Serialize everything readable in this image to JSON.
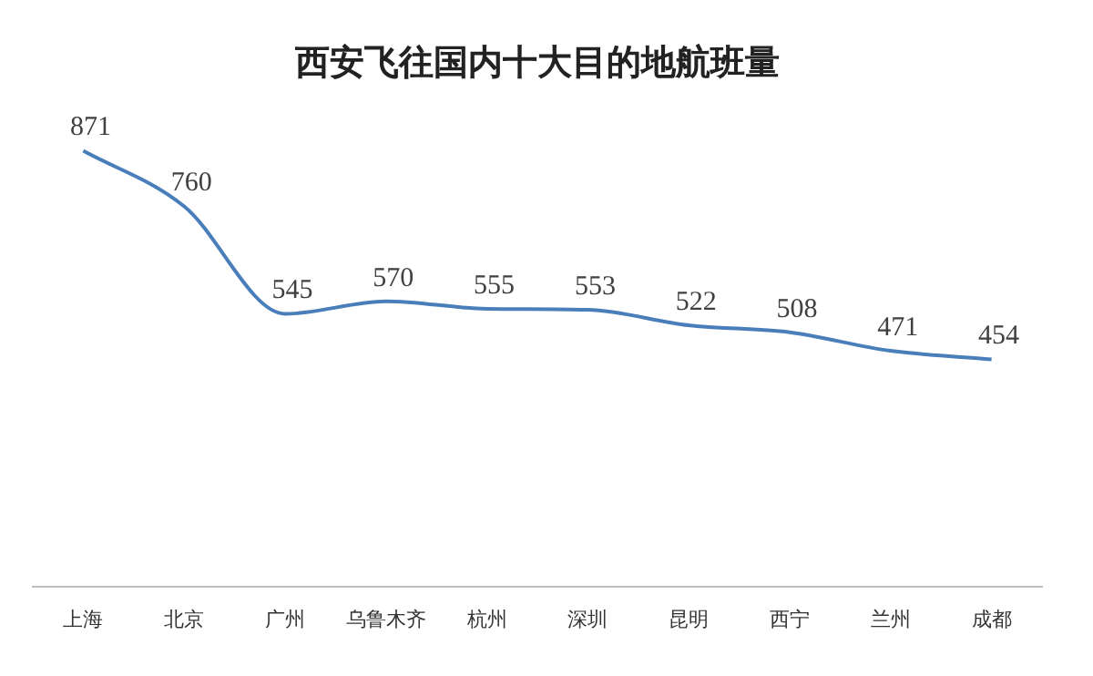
{
  "chart_data": {
    "type": "line",
    "title": "西安飞往国内十大目的地航班量",
    "categories": [
      "上海",
      "北京",
      "广州",
      "乌鲁木齐",
      "杭州",
      "深圳",
      "昆明",
      "西宁",
      "兰州",
      "成都"
    ],
    "series": [
      {
        "color": "#4a7ebb",
        "values": [
          871,
          760,
          545,
          570,
          555,
          553,
          522,
          508,
          471,
          454
        ]
      }
    ],
    "data_labels": true,
    "grid": false,
    "legend": false,
    "marker": "none",
    "line_style": "solid"
  }
}
